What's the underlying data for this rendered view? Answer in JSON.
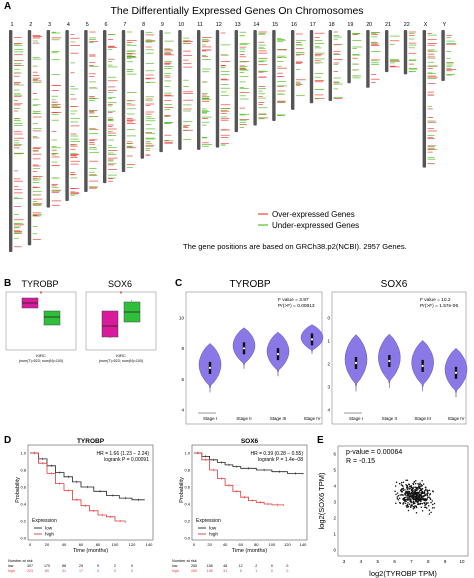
{
  "panelA": {
    "label": "A",
    "title": "The Differentially Expressed Genes On Chromosomes",
    "chromosomes": [
      "1",
      "2",
      "3",
      "4",
      "5",
      "6",
      "7",
      "8",
      "9",
      "10",
      "11",
      "12",
      "13",
      "14",
      "15",
      "16",
      "17",
      "18",
      "19",
      "20",
      "21",
      "22",
      "X",
      "Y"
    ],
    "legend": [
      "Over-expressed Genes",
      "Under-expressed Genes"
    ],
    "note": "The gene positions are based on GRCh38.p2(NCBI). 2957 Genes.",
    "colors": {
      "over": "#e8453c",
      "under": "#5bbf2a",
      "chrom": "#555555"
    }
  },
  "panelB": {
    "label": "B",
    "genes": [
      "TYROBP",
      "SOX6"
    ],
    "groups": [
      "KIRC"
    ],
    "counts": "(num(T)=523; num(N)=100)",
    "colors": {
      "tumor": "#d81b9b",
      "normal": "#2fbf3b"
    }
  },
  "panelC": {
    "label": "C",
    "genes": [
      "TYROBP",
      "SOX6"
    ],
    "stats": [
      {
        "f": "F value = 3.97",
        "p": "Pr(>F) = 0.00813"
      },
      {
        "f": "F value = 10.2",
        "p": "Pr(>F) = 1.57e-06"
      }
    ],
    "stages": [
      "Stage I",
      "Stage II",
      "Stage III",
      "Stage IV"
    ],
    "yticks_left": [
      "4",
      "6",
      "8",
      "10"
    ],
    "yticks_right": [
      "4",
      "3",
      "2",
      "1",
      "0"
    ],
    "color": "#8a78e6"
  },
  "panelD": {
    "label": "D",
    "ylabel": "Probability",
    "xlabel": "Time (months)",
    "legend_title": "Expression",
    "legend": [
      "low",
      "high"
    ],
    "at_risk_label": "Number at risk",
    "xticks": [
      "0",
      "20",
      "40",
      "60",
      "80",
      "100",
      "120",
      "140"
    ],
    "yticks": [
      "0.0",
      "0.2",
      "0.4",
      "0.6",
      "0.8",
      "1.0"
    ],
    "plots": [
      {
        "title": "TYROBP",
        "hr": "HR = 1.66 (1.23 − 2.24)",
        "logrank": "logrank P = 0.00091",
        "risk_low": [
          "307",
          "170",
          "88",
          "25",
          "9",
          "2",
          "0"
        ],
        "risk_high": [
          "223",
          "80",
          "31",
          "17",
          "3",
          "0",
          "0"
        ]
      },
      {
        "title": "SOX6",
        "hr": "HR = 0.39 (0.28 − 0.55)",
        "logrank": "logrank P = 1.4e−08",
        "risk_low": [
          "265",
          "158",
          "48",
          "12",
          "2",
          "0",
          "0"
        ],
        "risk_high": [
          "265",
          "138",
          "31",
          "5",
          "1",
          "0",
          "0"
        ]
      }
    ],
    "colors": {
      "low": "#222222",
      "high": "#e03a3a"
    }
  },
  "panelE": {
    "label": "E",
    "pvalue": "p-value = 0.00064",
    "r": "R = -0.15",
    "xlabel": "log2(TYROBP TPM)",
    "ylabel": "log2(SOX6 TPM)",
    "xticks": [
      "3",
      "4",
      "5",
      "6",
      "7",
      "8",
      "9",
      "10"
    ],
    "yticks": [
      "0",
      "1",
      "2",
      "3",
      "4",
      "5",
      "6"
    ]
  }
}
